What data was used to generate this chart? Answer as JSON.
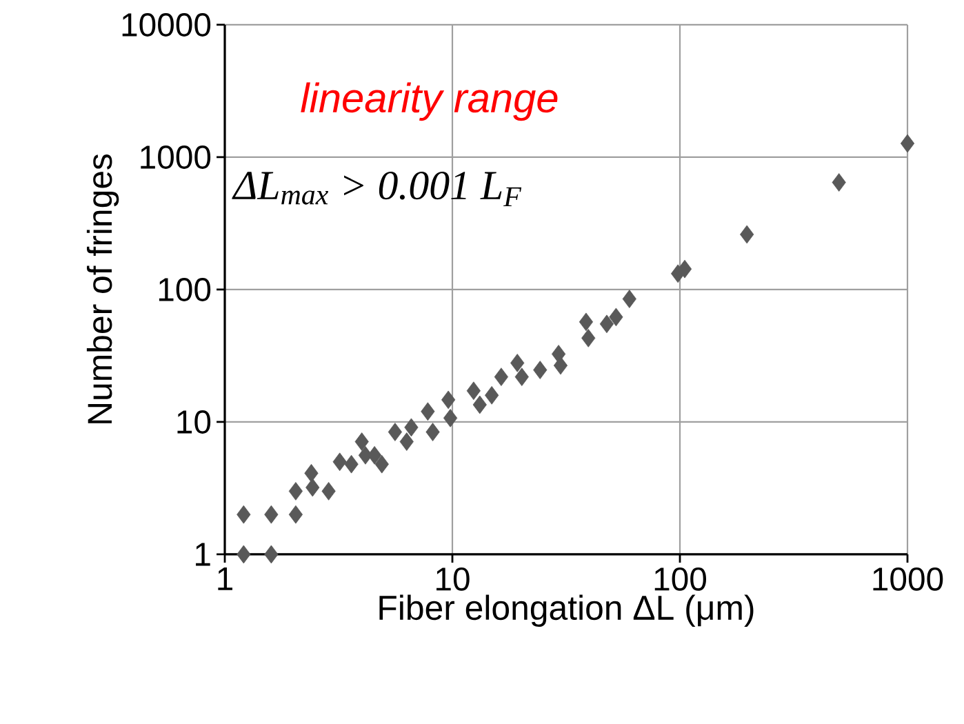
{
  "chart_data": {
    "type": "scatter",
    "xlabel": "Fiber elongation ΔL (μm)",
    "ylabel": "Number of fringes",
    "log": "xy",
    "grid": true,
    "marker": "diamond",
    "xlim": [
      1,
      1000
    ],
    "ylim": [
      1,
      10000
    ],
    "xticks": [
      1,
      10,
      100,
      1000
    ],
    "yticks": [
      1,
      10,
      100,
      1000,
      10000
    ],
    "annotations": [
      "linearity range",
      "ΔL$_{max}$ > 0.001 L$_{F}$"
    ],
    "series": [
      {
        "color": "#595959",
        "x": [
          1.21,
          1.21,
          1.6,
          1.6,
          2.05,
          2.05,
          2.4,
          2.43,
          2.86,
          3.2,
          3.6,
          4.0,
          4.15,
          4.55,
          4.9,
          5.6,
          6.3,
          6.6,
          7.8,
          8.2,
          9.6,
          9.8,
          12.4,
          13.2,
          14.9,
          16.4,
          19.3,
          20.2,
          24.3,
          29.3,
          29.9,
          38.7,
          39.6,
          47.7,
          52.4,
          60,
          98,
          105,
          197,
          500,
          1000
        ],
        "values": [
          2,
          1,
          2,
          1,
          2,
          3,
          4.1,
          3.2,
          3,
          5,
          4.8,
          7.1,
          5.6,
          5.6,
          4.8,
          8.4,
          7.1,
          9.1,
          12,
          8.4,
          14.7,
          10.7,
          17.2,
          13.5,
          15.9,
          21.9,
          27.9,
          21.9,
          24.7,
          32.6,
          26.7,
          57,
          43,
          55,
          62,
          85,
          132,
          143,
          261,
          645,
          1270
        ]
      }
    ]
  }
}
